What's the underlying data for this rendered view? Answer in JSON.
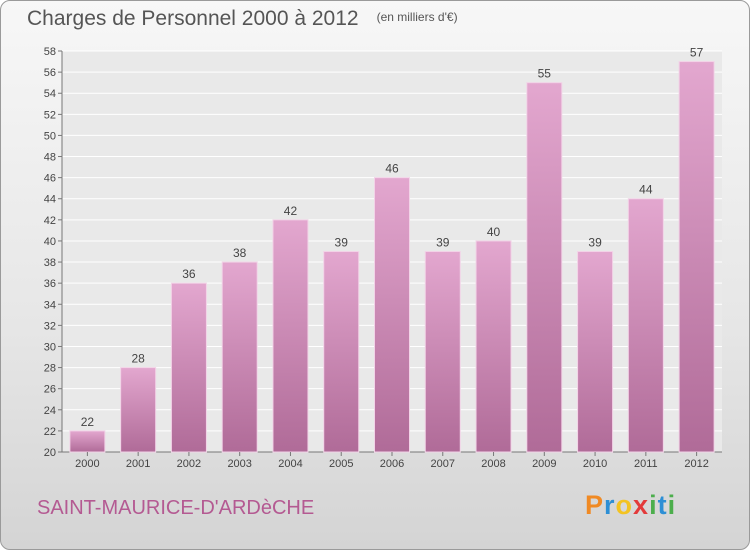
{
  "header": {
    "title": "Charges de Personnel 2000 à 2012",
    "unit": "(en milliers d'€)"
  },
  "footer": {
    "commune": "SAINT-MAURICE-D'ARDèCHE",
    "logo_text": "Proxiti"
  },
  "colors": {
    "bar": "#c97fae",
    "grid": "#ffffff",
    "title": "#555555",
    "commune": "#b45a92"
  },
  "chart_data": {
    "type": "bar",
    "title": "Charges de Personnel 2000 à 2012",
    "subtitle": "(en milliers d'€)",
    "xlabel": "",
    "ylabel": "",
    "categories": [
      "2000",
      "2001",
      "2002",
      "2003",
      "2004",
      "2005",
      "2006",
      "2007",
      "2008",
      "2009",
      "2010",
      "2011",
      "2012"
    ],
    "values": [
      22,
      28,
      36,
      38,
      42,
      39,
      46,
      39,
      40,
      55,
      39,
      44,
      57
    ],
    "ylim": [
      20,
      58
    ],
    "yticks": [
      20,
      22,
      24,
      26,
      28,
      30,
      32,
      34,
      36,
      38,
      40,
      42,
      44,
      46,
      48,
      50,
      52,
      54,
      56,
      58
    ],
    "grid": true,
    "legend": "none"
  }
}
